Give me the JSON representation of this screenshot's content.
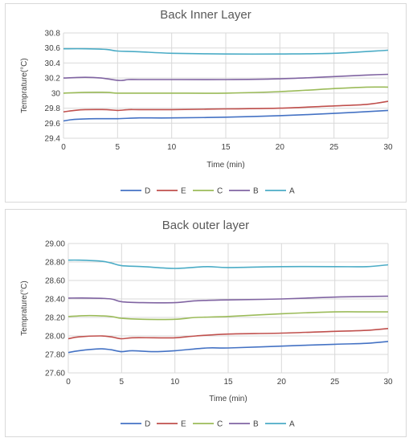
{
  "colors": {
    "D": "#4472c4",
    "E": "#c0504d",
    "C": "#9bbb59",
    "B": "#8064a2",
    "A": "#4bacc6"
  },
  "chart_data": [
    {
      "type": "line",
      "title": "Back Inner Layer",
      "xlabel": "Time (min)",
      "ylabel": "Temprature(°C)",
      "xlim": [
        0,
        30
      ],
      "ylim": [
        29.4,
        30.8
      ],
      "xticks": [
        "0",
        "5",
        "10",
        "15",
        "20",
        "25",
        "30"
      ],
      "yticks": [
        "29.4",
        "29.6",
        "29.8",
        "30",
        "30.2",
        "30.4",
        "30.6",
        "30.8"
      ],
      "grid": "horizontal",
      "legend": "bottom",
      "series": [
        {
          "name": "D",
          "x": [
            0,
            1,
            3,
            5,
            7,
            10,
            15,
            20,
            25,
            30
          ],
          "values": [
            29.63,
            29.65,
            29.66,
            29.66,
            29.67,
            29.67,
            29.68,
            29.7,
            29.73,
            29.77
          ]
        },
        {
          "name": "E",
          "x": [
            0,
            1,
            2,
            4,
            5,
            6,
            7,
            10,
            15,
            20,
            25,
            28,
            30
          ],
          "values": [
            29.75,
            29.77,
            29.78,
            29.78,
            29.77,
            29.78,
            29.78,
            29.78,
            29.79,
            29.8,
            29.83,
            29.85,
            29.89
          ]
        },
        {
          "name": "C",
          "x": [
            0,
            2,
            4,
            5,
            7,
            10,
            15,
            20,
            25,
            28,
            30
          ],
          "values": [
            30.0,
            30.01,
            30.01,
            30.0,
            30.0,
            30.0,
            30.0,
            30.02,
            30.06,
            30.08,
            30.08
          ]
        },
        {
          "name": "B",
          "x": [
            0,
            2,
            3.5,
            5,
            5.5,
            6,
            7,
            10,
            15,
            20,
            25,
            28,
            30
          ],
          "values": [
            30.2,
            30.21,
            30.2,
            30.17,
            30.17,
            30.18,
            30.18,
            30.18,
            30.18,
            30.19,
            30.22,
            30.24,
            30.25
          ]
        },
        {
          "name": "A",
          "x": [
            0,
            2,
            4,
            5,
            7,
            10,
            15,
            20,
            25,
            30
          ],
          "values": [
            30.59,
            30.59,
            30.58,
            30.56,
            30.55,
            30.53,
            30.52,
            30.52,
            30.53,
            30.57
          ]
        }
      ]
    },
    {
      "type": "line",
      "title": "Back outer layer",
      "xlabel": "Time (min)",
      "ylabel": "Temprature(°C)",
      "xlim": [
        0,
        30
      ],
      "ylim": [
        27.6,
        29.0
      ],
      "xticks": [
        "0",
        "5",
        "10",
        "15",
        "20",
        "25",
        "30"
      ],
      "yticks": [
        "27.60",
        "27.80",
        "28.00",
        "28.20",
        "28.40",
        "28.60",
        "28.80",
        "29.00"
      ],
      "grid": "horizontal",
      "legend": "bottom",
      "series": [
        {
          "name": "D",
          "x": [
            0,
            1,
            3,
            4,
            5,
            6,
            8,
            10,
            13,
            15,
            20,
            25,
            28,
            30
          ],
          "values": [
            27.82,
            27.84,
            27.86,
            27.85,
            27.83,
            27.84,
            27.83,
            27.84,
            27.87,
            27.87,
            27.89,
            27.91,
            27.92,
            27.94
          ]
        },
        {
          "name": "E",
          "x": [
            0,
            1,
            3,
            4,
            5,
            6,
            8,
            10,
            12,
            15,
            20,
            25,
            28,
            30
          ],
          "values": [
            27.97,
            27.99,
            28.0,
            27.99,
            27.97,
            27.98,
            27.98,
            27.98,
            28.0,
            28.02,
            28.03,
            28.05,
            28.06,
            28.08
          ]
        },
        {
          "name": "C",
          "x": [
            0,
            2,
            4,
            5,
            7,
            10,
            12,
            15,
            20,
            25,
            28,
            30
          ],
          "values": [
            28.21,
            28.22,
            28.21,
            28.19,
            28.18,
            28.18,
            28.2,
            28.21,
            28.24,
            28.26,
            28.26,
            28.26
          ]
        },
        {
          "name": "B",
          "x": [
            0,
            2,
            4,
            5,
            7,
            10,
            12,
            15,
            20,
            25,
            30
          ],
          "values": [
            28.41,
            28.41,
            28.4,
            28.37,
            28.36,
            28.36,
            28.38,
            28.39,
            28.4,
            28.42,
            28.43
          ]
        },
        {
          "name": "A",
          "x": [
            0,
            1,
            3,
            4,
            5,
            7,
            10,
            13,
            15,
            20,
            25,
            28,
            30
          ],
          "values": [
            28.82,
            28.82,
            28.81,
            28.79,
            28.76,
            28.75,
            28.73,
            28.75,
            28.74,
            28.75,
            28.75,
            28.75,
            28.77
          ]
        }
      ]
    }
  ]
}
